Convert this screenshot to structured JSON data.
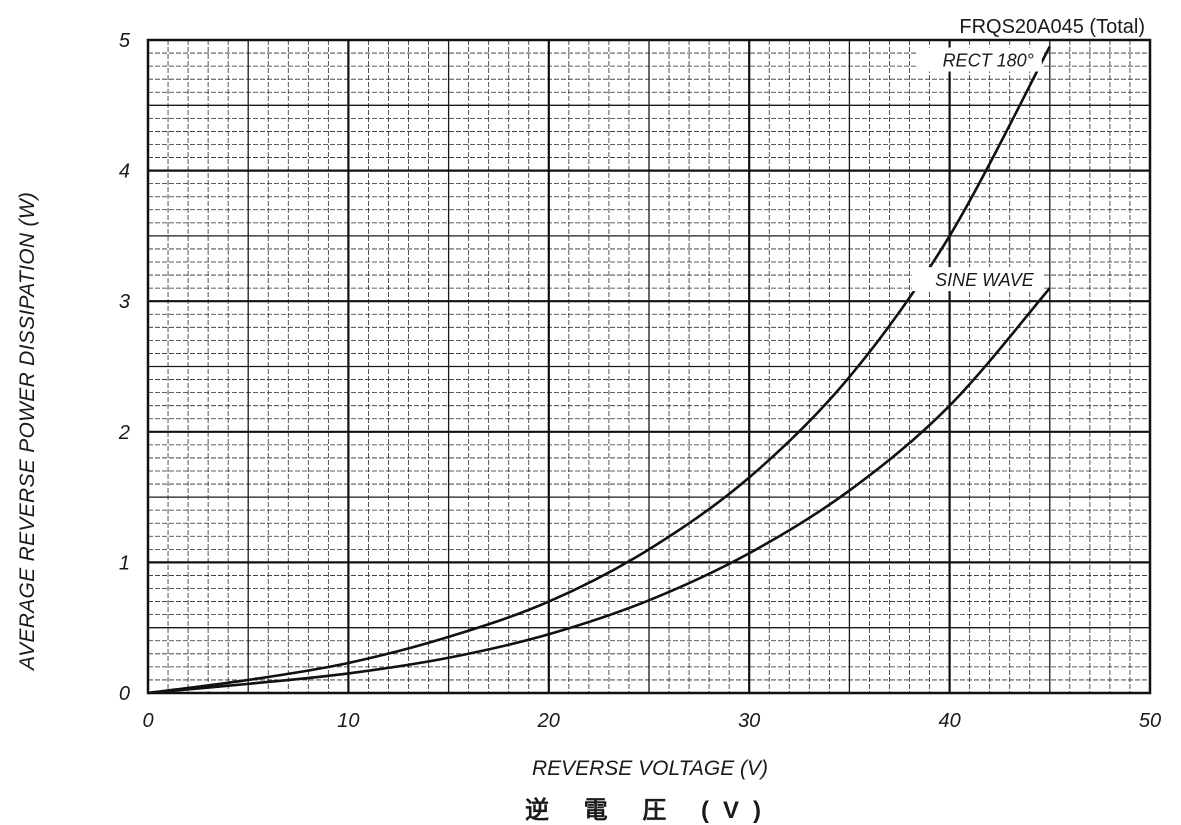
{
  "chart_data": {
    "type": "line",
    "title": "FRQS20A045 (Total)",
    "xlabel": "REVERSE VOLTAGE (V)",
    "xlabel_secondary": "逆 電 圧 (V)",
    "ylabel": "AVERAGE REVERSE POWER DISSIPATION (W)",
    "xlim": [
      0,
      50
    ],
    "ylim": [
      0,
      5
    ],
    "x_ticks": [
      "0",
      "10",
      "20",
      "30",
      "40",
      "50"
    ],
    "y_ticks": [
      "0",
      "1",
      "2",
      "3",
      "4",
      "5"
    ],
    "grid": true,
    "series": [
      {
        "name": "RECT 180°",
        "x": [
          0,
          5,
          10,
          15,
          20,
          25,
          30,
          35,
          40,
          45
        ],
        "y": [
          0,
          0.1,
          0.23,
          0.43,
          0.7,
          1.1,
          1.65,
          2.42,
          3.5,
          4.95
        ]
      },
      {
        "name": "SINE WAVE",
        "x": [
          0,
          5,
          10,
          15,
          20,
          25,
          30,
          35,
          40,
          45
        ],
        "y": [
          0,
          0.07,
          0.15,
          0.27,
          0.45,
          0.71,
          1.07,
          1.55,
          2.2,
          3.1
        ]
      }
    ]
  }
}
